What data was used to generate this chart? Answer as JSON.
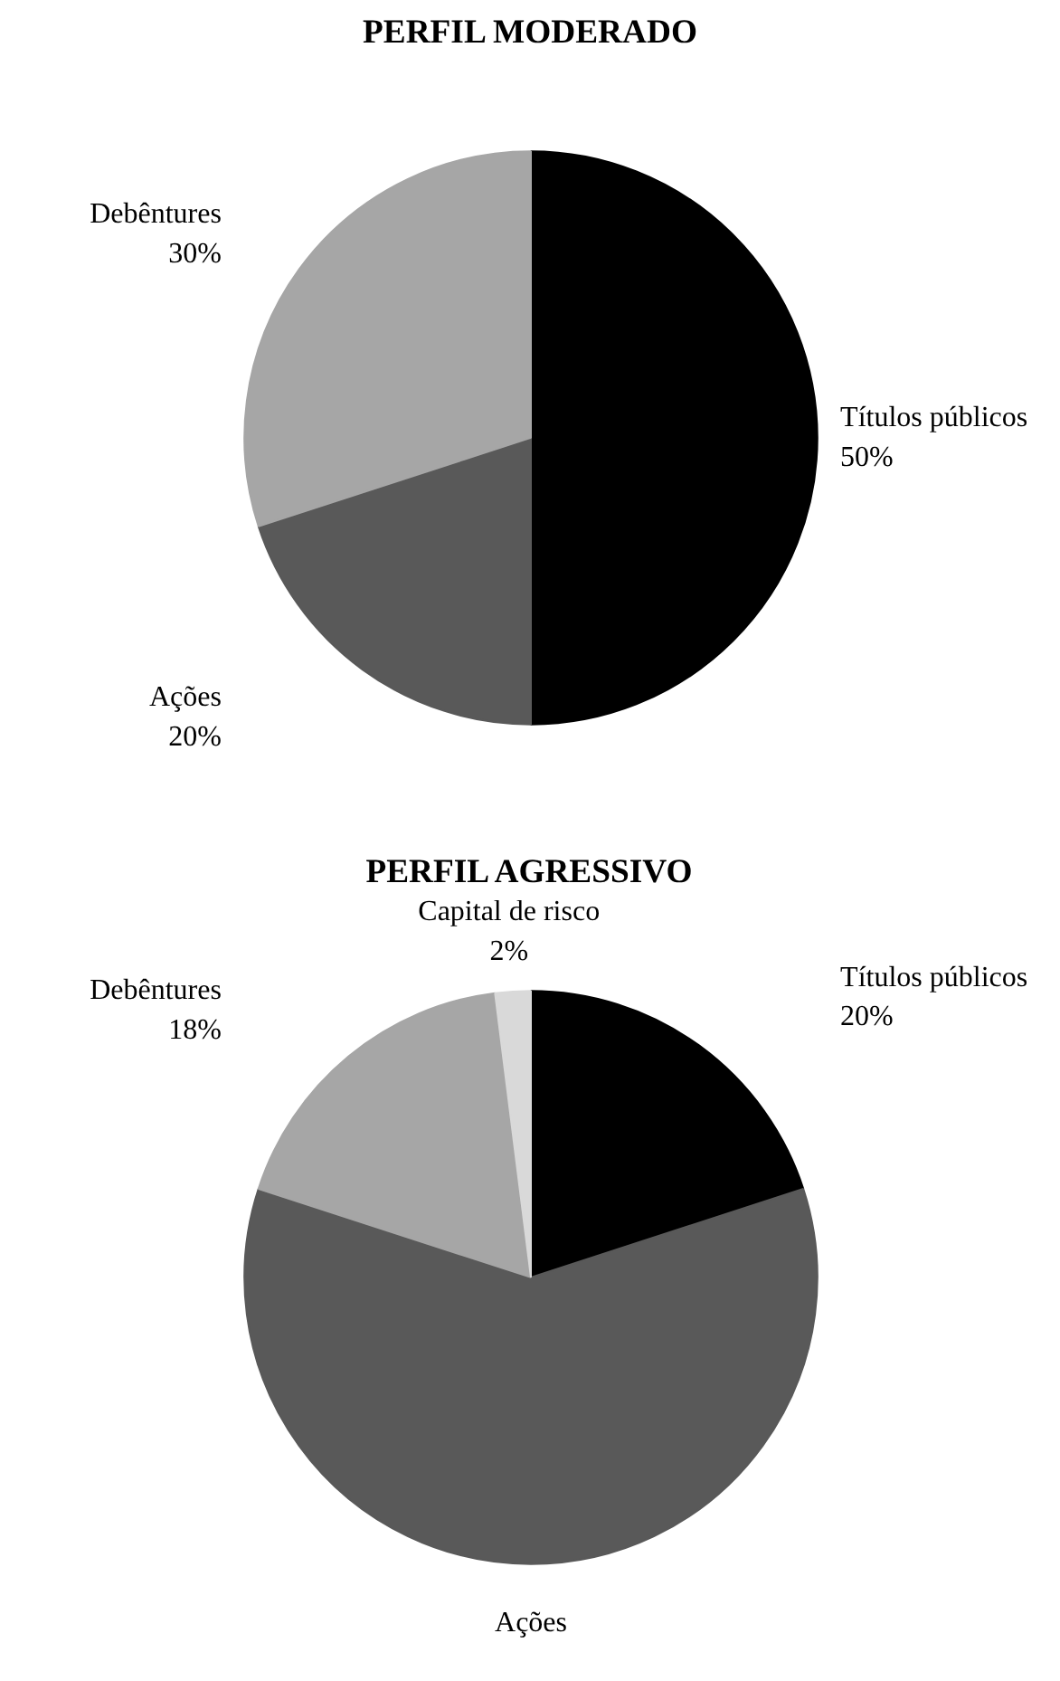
{
  "chart_data": [
    {
      "type": "pie",
      "title": "PERFIL MODERADO",
      "categories": [
        "Títulos públicos",
        "Ações",
        "Debêntures"
      ],
      "values": [
        50,
        20,
        30
      ],
      "colors": [
        "#000000",
        "#595959",
        "#a6a6a6"
      ],
      "value_labels": [
        "50%",
        "20%",
        "30%"
      ]
    },
    {
      "type": "pie",
      "title": "PERFIL AGRESSIVO",
      "categories": [
        "Títulos públicos",
        "Ações",
        "Debêntures",
        "Capital de risco"
      ],
      "values": [
        20,
        60,
        18,
        2
      ],
      "colors": [
        "#000000",
        "#595959",
        "#a6a6a6",
        "#d9d9d9"
      ],
      "value_labels": [
        "20%",
        null,
        "18%",
        "2%"
      ]
    }
  ]
}
